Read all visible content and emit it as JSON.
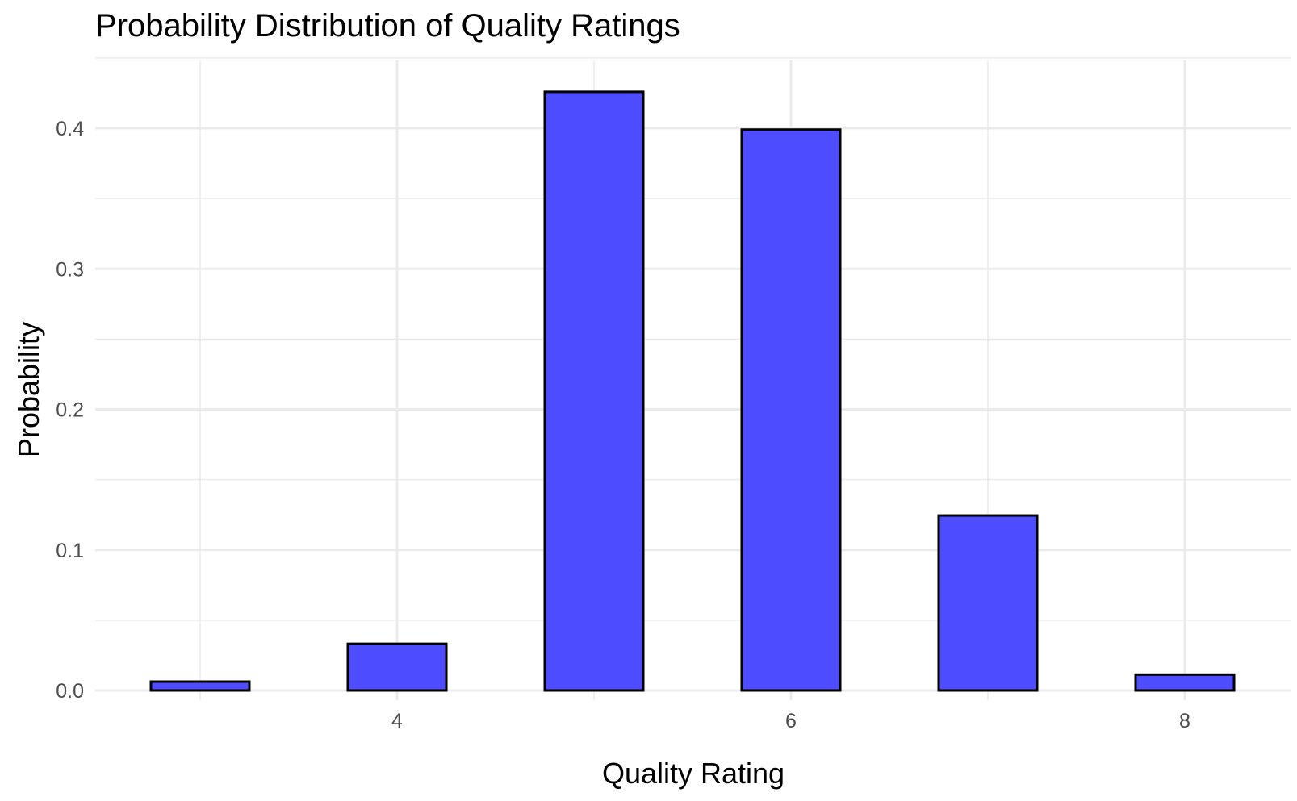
{
  "chart_data": {
    "type": "bar",
    "title": "Probability Distribution of Quality Ratings",
    "xlabel": "Quality Rating",
    "ylabel": "Probability",
    "x": [
      3,
      4,
      5,
      6,
      7,
      8
    ],
    "values": [
      0.0063,
      0.0332,
      0.4259,
      0.399,
      0.1245,
      0.0113
    ],
    "xlim": [
      2.5,
      8.5
    ],
    "ylim": [
      0,
      0.45
    ],
    "x_ticks": [
      4,
      6,
      8
    ],
    "y_ticks": [
      0.0,
      0.1,
      0.2,
      0.3,
      0.4
    ],
    "y_tick_labels": [
      "0.0",
      "0.1",
      "0.2",
      "0.3",
      "0.4"
    ],
    "bar_width": 0.5,
    "grid": true,
    "legend": "none",
    "colors": {
      "bar_fill": "#4d4dff",
      "bar_stroke": "#000000",
      "grid": "#ebebeb"
    }
  }
}
